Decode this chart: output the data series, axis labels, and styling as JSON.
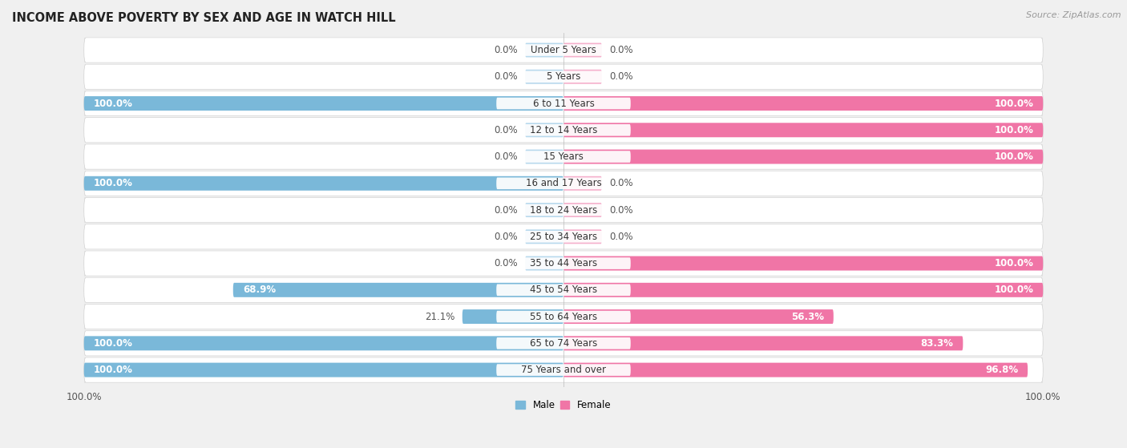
{
  "title": "INCOME ABOVE POVERTY BY SEX AND AGE IN WATCH HILL",
  "source": "Source: ZipAtlas.com",
  "categories": [
    "Under 5 Years",
    "5 Years",
    "6 to 11 Years",
    "12 to 14 Years",
    "15 Years",
    "16 and 17 Years",
    "18 to 24 Years",
    "25 to 34 Years",
    "35 to 44 Years",
    "45 to 54 Years",
    "55 to 64 Years",
    "65 to 74 Years",
    "75 Years and over"
  ],
  "male": [
    0.0,
    0.0,
    100.0,
    0.0,
    0.0,
    100.0,
    0.0,
    0.0,
    0.0,
    68.9,
    21.1,
    100.0,
    100.0
  ],
  "female": [
    0.0,
    0.0,
    100.0,
    100.0,
    100.0,
    0.0,
    0.0,
    0.0,
    100.0,
    100.0,
    56.3,
    83.3,
    96.8
  ],
  "male_color": "#7ab8d9",
  "female_color": "#f075a6",
  "male_color_light": "#b8d9ed",
  "female_color_light": "#f5b0cc",
  "row_bg_dark": "#e2e2e2",
  "row_bg_light": "#ebebeb",
  "fig_bg": "#f0f0f0",
  "title_fontsize": 10.5,
  "label_fontsize": 8.5,
  "cat_fontsize": 8.5,
  "tick_fontsize": 8.5,
  "source_fontsize": 8.0
}
